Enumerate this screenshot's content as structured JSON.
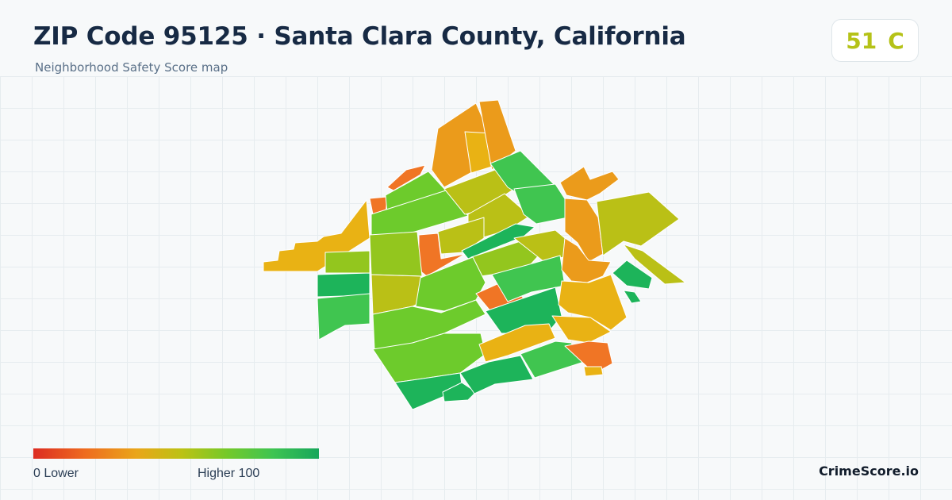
{
  "header": {
    "title": "ZIP Code 95125 · Santa Clara County, California",
    "subtitle": "Neighborhood Safety Score map"
  },
  "score": {
    "value": "51",
    "grade": "C",
    "color": "#b5c218"
  },
  "legend": {
    "min_label": "0  Lower",
    "max_label": "Higher  100",
    "colors": [
      "#dc2c22",
      "#ee6b1f",
      "#eaa51a",
      "#bcc214",
      "#74c92a",
      "#3ec452",
      "#17a65b"
    ]
  },
  "map": {
    "region_colors": {
      "red_orange": "#f07525",
      "orange": "#eb9b1b",
      "amber": "#e9b214",
      "yellow_green": "#bac016",
      "light_green": "#93c61e",
      "green": "#6dcb2c",
      "mid_green": "#40c550",
      "dark_green": "#1db45a"
    }
  },
  "brand": "CrimeScore.io"
}
